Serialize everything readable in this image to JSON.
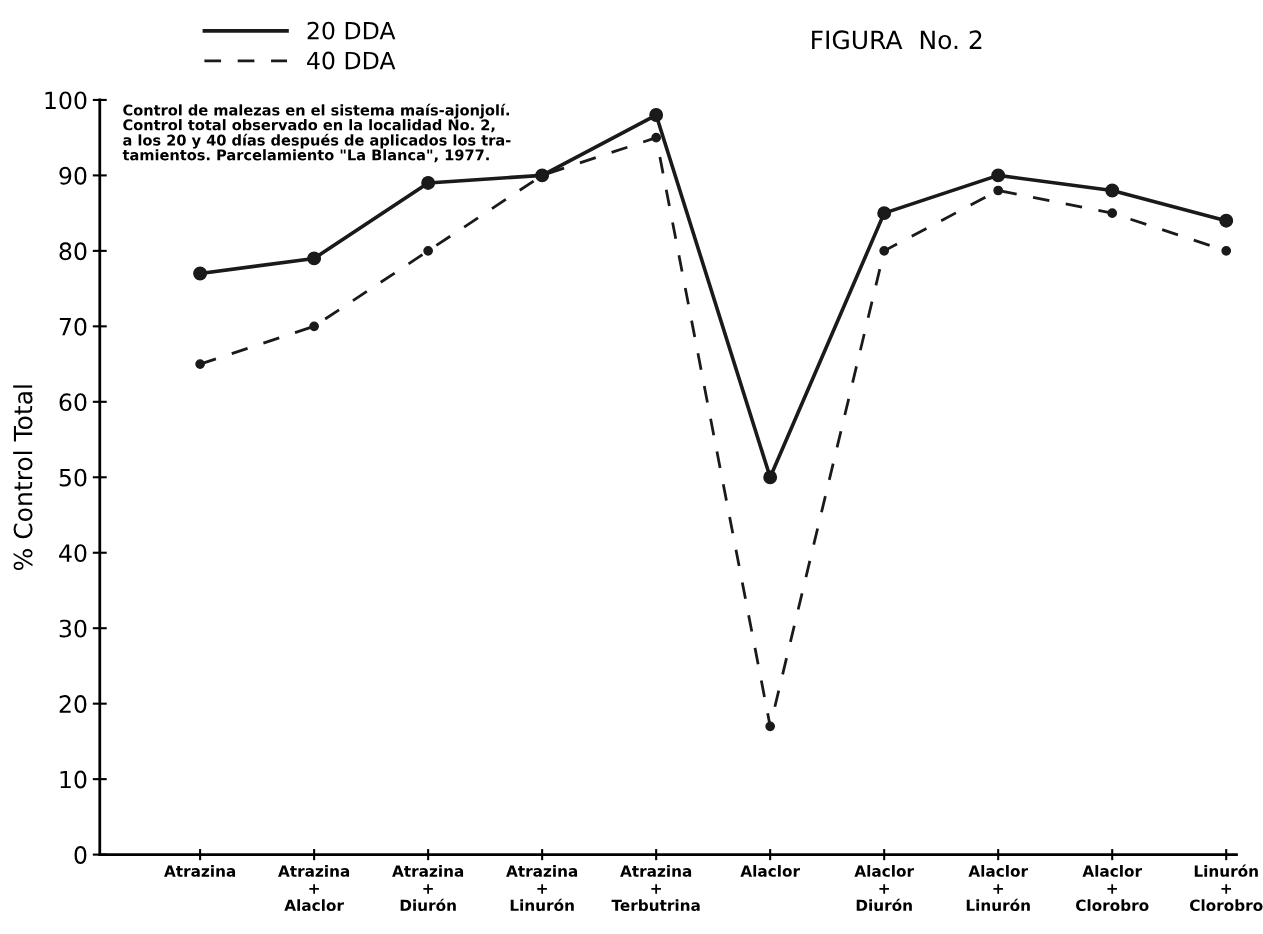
{
  "chart_data": {
    "type": "line",
    "title": "FIGURA  No. 2",
    "ylabel": "% Control Total",
    "categories": [
      "Atrazina",
      "Atrazina\n+\nAlaclor",
      "Atrazina\n+\nDiurón",
      "Atrazina\n+\nLinurón",
      "Atrazina\n+\nTerbutrina",
      "Alaclor",
      "Alaclor\n+\nDiurón",
      "Alaclor\n+\nLinurón",
      "Alaclor\n+\nClorobro",
      "Linurón\n+\nClorobro"
    ],
    "series": [
      {
        "name": "20 DDA",
        "color": "#1a1a1a",
        "line_style": "solid",
        "values": [
          77,
          79,
          89,
          90,
          98,
          50,
          85,
          90,
          88,
          84
        ]
      },
      {
        "name": "40 DDA",
        "color": "#1a1a1a",
        "line_style": "dashed",
        "values": [
          65,
          70,
          80,
          90,
          95,
          17,
          80,
          88,
          85,
          80
        ]
      }
    ],
    "ylim": [
      0,
      100
    ],
    "yticks": [
      0,
      10,
      20,
      30,
      40,
      50,
      60,
      70,
      80,
      90,
      100
    ],
    "marker": "circle",
    "grid": false,
    "legend": "top left",
    "annotations": [
      "Control de malezas en el sistema maís-ajonjolí.\nControl total observado en la localidad No. 2,\na los 20 y 40 días después de aplicados los tra-\ntamientos. Parcelamiento \"La Blanca\", 1977."
    ]
  }
}
